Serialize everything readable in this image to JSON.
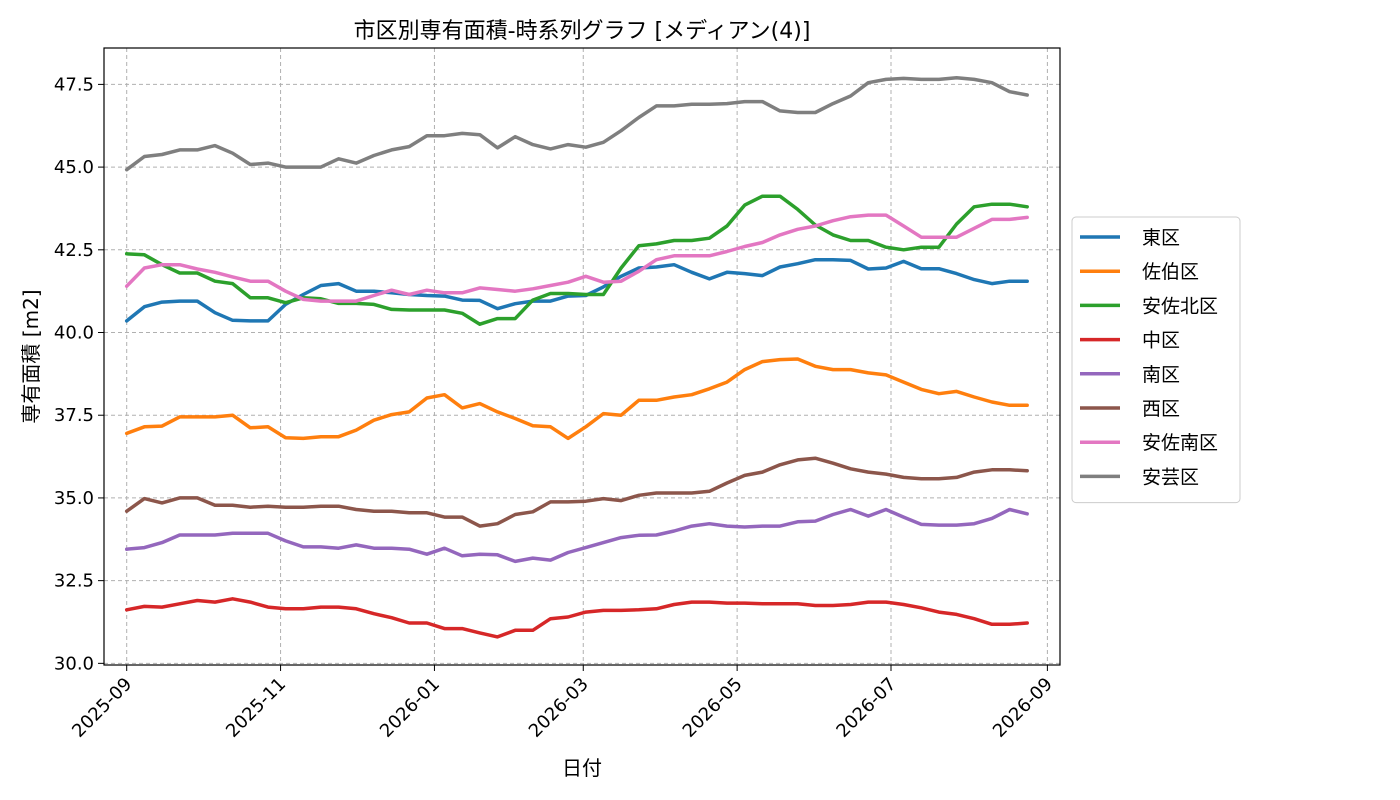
{
  "chart_data": {
    "type": "line",
    "title": "市区別専有面積-時系列グラフ [メディアン(4)]",
    "xlabel": "日付",
    "ylabel": "専有面積 [m2]",
    "ylim": [
      30.0,
      47.5
    ],
    "xlim": [
      "2025-08-23",
      "2026-09-06"
    ],
    "grid": true,
    "legend_position": "right",
    "x_ticks": [
      "2025-09",
      "2025-11",
      "2026-01",
      "2026-03",
      "2026-05",
      "2026-07",
      "2026-09"
    ],
    "y_ticks": [
      30.0,
      32.5,
      35.0,
      37.5,
      40.0,
      42.5,
      45.0,
      47.5
    ],
    "x": [
      "2025-09-01",
      "2025-09-08",
      "2025-09-15",
      "2025-09-22",
      "2025-09-29",
      "2025-10-06",
      "2025-10-13",
      "2025-10-20",
      "2025-10-27",
      "2025-11-03",
      "2025-11-10",
      "2025-11-17",
      "2025-11-24",
      "2025-12-01",
      "2025-12-08",
      "2025-12-15",
      "2025-12-22",
      "2025-12-29",
      "2026-01-05",
      "2026-01-12",
      "2026-01-19",
      "2026-01-26",
      "2026-02-02",
      "2026-02-09",
      "2026-02-16",
      "2026-02-23",
      "2026-03-02",
      "2026-03-09",
      "2026-03-16",
      "2026-03-23",
      "2026-03-30",
      "2026-04-06",
      "2026-04-13",
      "2026-04-20",
      "2026-04-27",
      "2026-05-04",
      "2026-05-11",
      "2026-05-18",
      "2026-05-25",
      "2026-06-01",
      "2026-06-08",
      "2026-06-15",
      "2026-06-22",
      "2026-06-29",
      "2026-07-06",
      "2026-07-13",
      "2026-07-20",
      "2026-07-27",
      "2026-08-03",
      "2026-08-10",
      "2026-08-17",
      "2026-08-24"
    ],
    "series": [
      {
        "name": "東区",
        "color": "#1f77b4",
        "values": [
          40.35,
          40.78,
          40.92,
          40.95,
          40.95,
          40.6,
          40.37,
          40.35,
          40.35,
          40.85,
          41.15,
          41.42,
          41.48,
          41.25,
          41.25,
          41.2,
          41.15,
          41.12,
          41.1,
          40.98,
          40.97,
          40.72,
          40.87,
          40.95,
          40.95,
          41.1,
          41.12,
          41.38,
          41.7,
          41.95,
          41.98,
          42.05,
          41.82,
          41.62,
          41.82,
          41.78,
          41.72,
          41.98,
          42.08,
          42.2,
          42.2,
          42.18,
          41.92,
          41.95,
          42.15,
          41.93,
          41.93,
          41.78,
          41.6,
          41.48,
          41.55,
          41.55
        ]
      },
      {
        "name": "佐伯区",
        "color": "#ff7f0e",
        "values": [
          36.95,
          37.15,
          37.17,
          37.45,
          37.45,
          37.45,
          37.5,
          37.12,
          37.15,
          36.82,
          36.8,
          36.85,
          36.85,
          37.05,
          37.35,
          37.52,
          37.6,
          38.02,
          38.12,
          37.72,
          37.85,
          37.6,
          37.4,
          37.18,
          37.15,
          36.8,
          37.15,
          37.55,
          37.5,
          37.95,
          37.95,
          38.05,
          38.12,
          38.3,
          38.5,
          38.88,
          39.12,
          39.18,
          39.2,
          38.98,
          38.88,
          38.88,
          38.78,
          38.72,
          38.5,
          38.28,
          38.15,
          38.22,
          38.05,
          37.9,
          37.8,
          37.8
        ]
      },
      {
        "name": "安佐北区",
        "color": "#2ca02c",
        "values": [
          42.38,
          42.35,
          42.05,
          41.8,
          41.8,
          41.55,
          41.48,
          41.05,
          41.05,
          40.9,
          41.05,
          41.02,
          40.88,
          40.88,
          40.85,
          40.7,
          40.68,
          40.68,
          40.68,
          40.58,
          40.25,
          40.42,
          40.42,
          40.98,
          41.18,
          41.18,
          41.15,
          41.15,
          41.95,
          42.62,
          42.68,
          42.78,
          42.78,
          42.85,
          43.22,
          43.85,
          44.12,
          44.12,
          43.72,
          43.25,
          42.95,
          42.78,
          42.78,
          42.58,
          42.5,
          42.58,
          42.58,
          43.28,
          43.8,
          43.88,
          43.88,
          43.8
        ]
      },
      {
        "name": "中区",
        "color": "#d62728",
        "values": [
          31.62,
          31.72,
          31.7,
          31.8,
          31.9,
          31.85,
          31.95,
          31.85,
          31.7,
          31.65,
          31.65,
          31.7,
          31.7,
          31.65,
          31.5,
          31.38,
          31.22,
          31.22,
          31.05,
          31.05,
          30.92,
          30.8,
          31.0,
          31.0,
          31.35,
          31.4,
          31.55,
          31.6,
          31.6,
          31.62,
          31.65,
          31.78,
          31.85,
          31.85,
          31.82,
          31.82,
          31.8,
          31.8,
          31.8,
          31.75,
          31.75,
          31.78,
          31.85,
          31.85,
          31.78,
          31.68,
          31.55,
          31.48,
          31.35,
          31.18,
          31.18,
          31.22
        ]
      },
      {
        "name": "南区",
        "color": "#9467bd",
        "values": [
          33.45,
          33.5,
          33.65,
          33.88,
          33.88,
          33.88,
          33.93,
          33.93,
          33.93,
          33.7,
          33.52,
          33.52,
          33.48,
          33.58,
          33.48,
          33.48,
          33.45,
          33.3,
          33.48,
          33.25,
          33.3,
          33.28,
          33.08,
          33.18,
          33.12,
          33.35,
          33.5,
          33.65,
          33.8,
          33.87,
          33.88,
          34.0,
          34.15,
          34.22,
          34.15,
          34.12,
          34.15,
          34.15,
          34.28,
          34.3,
          34.5,
          34.65,
          34.45,
          34.65,
          34.42,
          34.2,
          34.18,
          34.18,
          34.22,
          34.38,
          34.65,
          34.52
        ]
      },
      {
        "name": "西区",
        "color": "#8c564b",
        "values": [
          34.6,
          34.98,
          34.85,
          35.0,
          35.0,
          34.78,
          34.78,
          34.72,
          34.75,
          34.72,
          34.72,
          34.75,
          34.75,
          34.65,
          34.6,
          34.6,
          34.55,
          34.55,
          34.42,
          34.42,
          34.15,
          34.22,
          34.5,
          34.58,
          34.88,
          34.88,
          34.9,
          34.98,
          34.92,
          35.08,
          35.15,
          35.15,
          35.15,
          35.2,
          35.45,
          35.68,
          35.78,
          36.0,
          36.15,
          36.2,
          36.05,
          35.88,
          35.78,
          35.72,
          35.62,
          35.58,
          35.58,
          35.62,
          35.78,
          35.85,
          35.85,
          35.82
        ]
      },
      {
        "name": "安佐南区",
        "color": "#e377c2",
        "values": [
          41.4,
          41.95,
          42.05,
          42.05,
          41.92,
          41.82,
          41.68,
          41.55,
          41.55,
          41.25,
          41.0,
          40.95,
          40.95,
          40.95,
          41.12,
          41.28,
          41.15,
          41.28,
          41.2,
          41.2,
          41.35,
          41.3,
          41.25,
          41.32,
          41.42,
          41.52,
          41.7,
          41.52,
          41.55,
          41.85,
          42.2,
          42.32,
          42.32,
          42.32,
          42.45,
          42.6,
          42.72,
          42.95,
          43.12,
          43.22,
          43.38,
          43.5,
          43.55,
          43.55,
          43.22,
          42.88,
          42.88,
          42.88,
          43.15,
          43.42,
          43.42,
          43.48
        ]
      },
      {
        "name": "安芸区",
        "color": "#7f7f7f",
        "values": [
          44.92,
          45.32,
          45.38,
          45.52,
          45.52,
          45.65,
          45.42,
          45.08,
          45.12,
          45.0,
          45.0,
          45.0,
          45.25,
          45.12,
          45.35,
          45.52,
          45.62,
          45.95,
          45.95,
          46.02,
          45.98,
          45.58,
          45.92,
          45.68,
          45.55,
          45.68,
          45.6,
          45.75,
          46.1,
          46.5,
          46.85,
          46.85,
          46.9,
          46.9,
          46.92,
          46.98,
          46.98,
          46.7,
          46.65,
          46.65,
          46.92,
          47.15,
          47.55,
          47.65,
          47.68,
          47.65,
          47.65,
          47.7,
          47.65,
          47.55,
          47.28,
          47.18
        ]
      }
    ]
  }
}
